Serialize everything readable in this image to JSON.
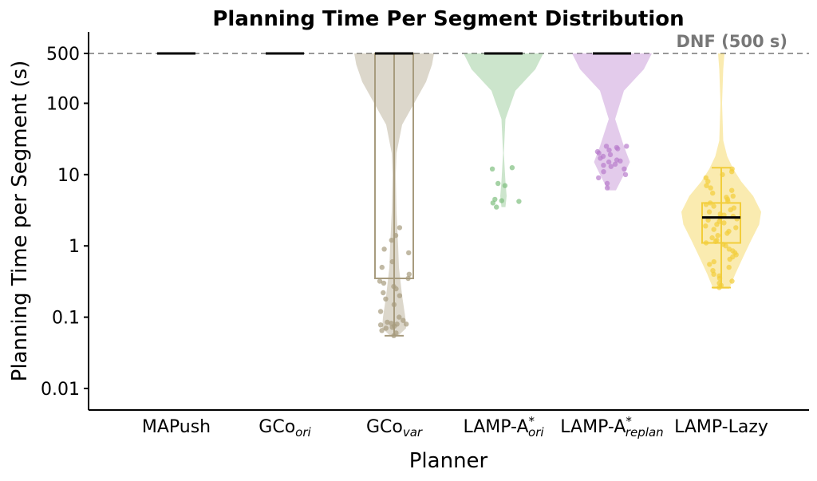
{
  "chart_data": {
    "type": "violin",
    "title": "Planning Time Per Segment Distribution",
    "xlabel": "Planner",
    "ylabel": "Planning Time per Segment (s)",
    "yscale": "log",
    "ylim": [
      0.005,
      900
    ],
    "yticks": [
      {
        "value": 0.01,
        "label": "0.01"
      },
      {
        "value": 0.1,
        "label": "0.1"
      },
      {
        "value": 1,
        "label": "1"
      },
      {
        "value": 10,
        "label": "10"
      },
      {
        "value": 100,
        "label": "100"
      },
      {
        "value": 500,
        "label": "500"
      }
    ],
    "reference_line": {
      "value": 500,
      "label": "DNF (500 s)",
      "color": "#999999",
      "style": "dashed"
    },
    "categories": [
      {
        "base": "MAPush",
        "sub": "",
        "sup": ""
      },
      {
        "base": "GCo",
        "sub": "ori",
        "sup": ""
      },
      {
        "base": "GCo",
        "sub": "var",
        "sup": ""
      },
      {
        "base": "LAMP-A",
        "sub": "ori",
        "sup": "*"
      },
      {
        "base": "LAMP-A",
        "sub": "replan",
        "sup": "*"
      },
      {
        "base": "LAMP-Lazy",
        "sub": "",
        "sup": ""
      }
    ],
    "series": [
      {
        "color": "#000000",
        "median": 500,
        "violin": [],
        "box": null,
        "points": []
      },
      {
        "color": "#000000",
        "median": 500,
        "violin": [],
        "box": null,
        "points": []
      },
      {
        "color": "#a79b7e",
        "median": 500,
        "violin": [
          [
            0.055,
            0.1
          ],
          [
            0.07,
            0.3
          ],
          [
            0.1,
            0.28
          ],
          [
            0.2,
            0.2
          ],
          [
            0.5,
            0.12
          ],
          [
            1,
            0.1
          ],
          [
            3,
            0.06
          ],
          [
            10,
            0.04
          ],
          [
            20,
            0.06
          ],
          [
            50,
            0.2
          ],
          [
            100,
            0.5
          ],
          [
            200,
            0.8
          ],
          [
            350,
            0.95
          ],
          [
            500,
            1.0
          ]
        ],
        "box": {
          "q1": 0.35,
          "q3": 500,
          "whisker_low": 0.055,
          "whisker_high": 500
        },
        "points": [
          0.055,
          0.06,
          0.065,
          0.07,
          0.072,
          0.075,
          0.078,
          0.08,
          0.08,
          0.082,
          0.085,
          0.09,
          0.1,
          0.12,
          0.15,
          0.18,
          0.2,
          0.22,
          0.25,
          0.27,
          0.3,
          0.32,
          0.35,
          0.4,
          0.5,
          0.6,
          0.8,
          0.9,
          1.2,
          1.4,
          1.8
        ]
      },
      {
        "color": "#7fbf7f",
        "median": 500,
        "violin": [
          [
            3.5,
            0.05
          ],
          [
            5,
            0.08
          ],
          [
            8,
            0.05
          ],
          [
            20,
            0.01
          ],
          [
            60,
            0.05
          ],
          [
            150,
            0.3
          ],
          [
            300,
            0.8
          ],
          [
            500,
            1.0
          ]
        ],
        "box": null,
        "points": [
          3.5,
          4,
          4.2,
          4.3,
          4.5,
          7,
          7.5,
          12,
          12.5
        ]
      },
      {
        "color": "#b87ccc",
        "median": 500,
        "violin": [
          [
            6,
            0.1
          ],
          [
            10,
            0.3
          ],
          [
            15,
            0.45
          ],
          [
            25,
            0.3
          ],
          [
            60,
            0.08
          ],
          [
            150,
            0.3
          ],
          [
            300,
            0.8
          ],
          [
            500,
            1.0
          ]
        ],
        "box": null,
        "points": [
          6.5,
          7.5,
          9,
          10,
          11,
          12,
          13,
          13.5,
          14,
          15,
          15.5,
          16,
          17,
          18,
          19,
          20,
          21,
          22,
          23,
          24,
          25,
          25
        ]
      },
      {
        "color": "#f2cd3a",
        "median": 2.5,
        "violin": [
          [
            0.25,
            0.2
          ],
          [
            0.4,
            0.35
          ],
          [
            0.7,
            0.55
          ],
          [
            1.2,
            0.75
          ],
          [
            2,
            0.95
          ],
          [
            3,
            1.0
          ],
          [
            5,
            0.8
          ],
          [
            8,
            0.5
          ],
          [
            12,
            0.3
          ],
          [
            18,
            0.15
          ],
          [
            30,
            0.05
          ],
          [
            100,
            0.02
          ],
          [
            300,
            0.05
          ],
          [
            500,
            0.08
          ]
        ],
        "box": {
          "q1": 1.1,
          "q3": 4.0,
          "whisker_low": 0.26,
          "whisker_high": 12.5
        },
        "points": [
          0.26,
          0.28,
          0.3,
          0.32,
          0.35,
          0.38,
          0.4,
          0.45,
          0.5,
          0.55,
          0.6,
          0.65,
          0.7,
          0.75,
          0.8,
          0.85,
          0.9,
          1.0,
          1.05,
          1.1,
          1.15,
          1.2,
          1.3,
          1.4,
          1.5,
          1.6,
          1.7,
          1.8,
          1.9,
          2.0,
          2.1,
          2.2,
          2.3,
          2.4,
          2.5,
          2.6,
          2.7,
          2.8,
          3.0,
          3.2,
          3.4,
          3.6,
          3.8,
          4.0,
          4.2,
          4.5,
          4.8,
          5,
          5.5,
          6,
          6.5,
          7,
          8,
          9,
          10,
          11,
          12
        ]
      }
    ]
  }
}
